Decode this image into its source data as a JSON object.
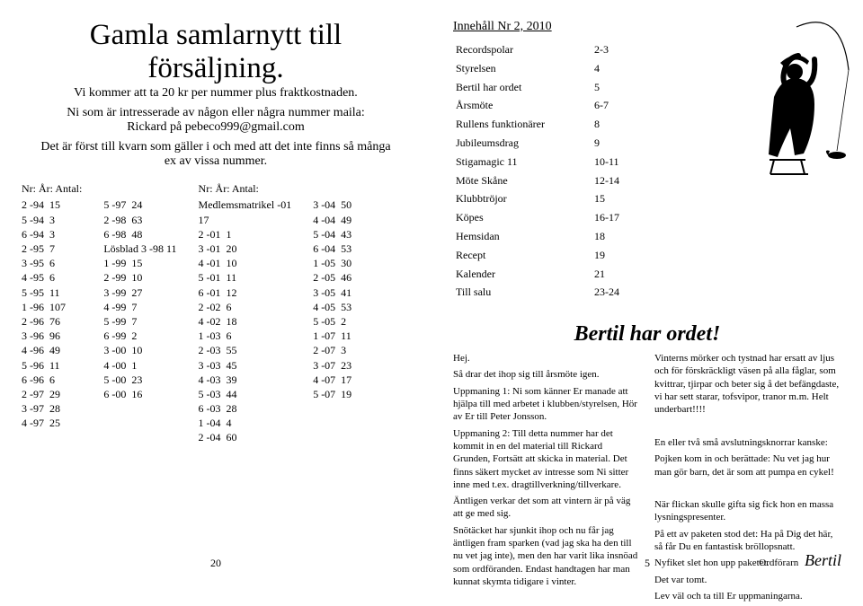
{
  "left": {
    "headline1": "Gamla samlarnytt till",
    "headline2": "försäljning.",
    "sub1": "Vi kommer att ta 20 kr per nummer plus fraktkostnaden.",
    "sub2": "Ni som är intresserade av någon eller några nummer maila:",
    "sub3": "Rickard på pebeco999@gmail.com",
    "sub4": "Det är först till kvarn som gäller i och med att det inte finns så många",
    "sub5": "ex av vissa nummer.",
    "listHead": "Nr: År: Antal:",
    "col1": "2 -94  15\n5 -94  3\n6 -94  3\n2 -95  7\n3 -95  6\n4 -95  6\n5 -95  11\n1 -96  107\n2 -96  76\n3 -96  96\n4 -96  49\n5 -96  11\n6 -96  6\n2 -97  29\n3 -97  28\n4 -97  25",
    "col2": "5 -97  24\n2 -98  63\n6 -98  48\nLösblad 3 -98 11\n1 -99  15\n2 -99  10\n3 -99  27\n4 -99  7\n5 -99  7\n6 -99  2\n3 -00  10\n4 -00  1\n5 -00  23\n6 -00  16",
    "col3": "Medlemsmatrikel -01\n17\n2 -01  1\n3 -01  20\n4 -01  10\n5 -01  11\n6 -01  12\n2 -02  6\n4 -02  18\n1 -03  6\n2 -03  55\n3 -03  45\n4 -03  39\n5 -03  44\n6 -03  28\n1 -04  4\n2 -04  60",
    "col4": "3 -04  50\n4 -04  49\n5 -04  43\n6 -04  53\n1 -05  30\n2 -05  46\n3 -05  41\n4 -05  53\n5 -05  2\n1 -07  11\n2 -07  3\n3 -07  23\n4 -07  17\n5 -07  19",
    "pageNum": "20"
  },
  "right": {
    "tocTitle": "Innehåll Nr 2, 2010",
    "toc": [
      [
        "Recordspolar",
        "2-3"
      ],
      [
        "Styrelsen",
        "4"
      ],
      [
        "Bertil har ordet",
        "5"
      ],
      [
        "Årsmöte",
        "6-7"
      ],
      [
        "Rullens funktionärer",
        "8"
      ],
      [
        "Jubileumsdrag",
        "9"
      ],
      [
        "Stigamagic 11",
        "10-11"
      ],
      [
        "Möte Skåne",
        "12-14"
      ],
      [
        "Klubbtröjor",
        "15"
      ],
      [
        "Köpes",
        "16-17"
      ],
      [
        "Hemsidan",
        "18"
      ],
      [
        "Recept",
        "19"
      ],
      [
        "Kalender",
        "21"
      ],
      [
        "Till salu",
        "23-24"
      ]
    ],
    "ordTitle": "Bertil har ordet!",
    "ordLeft": "Hej.\nSå drar det ihop sig till årsmöte igen.\nUppmaning 1: Ni som känner Er manade att hjälpa till med arbetet i klubben/styrelsen, Hör av Er till Peter Jonsson.\nUppmaning 2: Till detta nummer har det kommit in en del material till Rickard Grunden, Fortsätt att skicka in material.  Det finns säkert mycket av intresse som Ni sitter inne med t.ex. dragtillverkning/tillverkare.\nÄntligen verkar det som att vintern är på väg att ge med sig.\nSnötäcket har sjunkit ihop och nu får jag äntligen fram sparken (vad jag ska ha den till nu vet jag inte), men den har varit lika insnöad som ordföranden. Endast handtagen har man kunnat skymta tidigare i vinter.",
    "ordRight": "Vinterns mörker och tystnad har ersatt av ljus och för förskräckligt väsen på alla fåglar, som kvittrar, tjirpar och beter sig å det befängdaste, vi har sett starar, tofsvipor, tranor m.m. Helt underbart!!!!\n\nEn eller två små avslutningsknorrar kanske:\nPojken kom in och berättade: Nu vet jag hur man gör barn, det är som att pumpa en cykel!\n\nNär flickan skulle gifta sig fick hon en massa lysningspresenter.\nPå ett av paketen stod det: Ha på Dig det här, så får Du en fantastisk bröllopsnatt.\nNyfiket slet hon upp paketet.\nDet var tomt.\nLev väl och ta till Er uppmaningarna.",
    "signLabel": "Ordförarn",
    "signName": "Bertil",
    "pageNum": "5"
  }
}
